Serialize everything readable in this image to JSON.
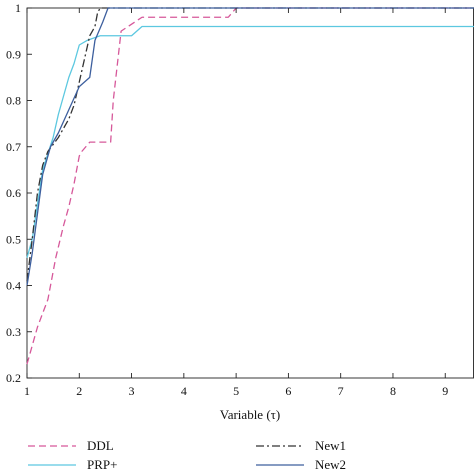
{
  "chart_data": {
    "type": "line",
    "title": "",
    "xlabel": "Variable (τ)",
    "ylabel": "",
    "xlim": [
      1,
      9.55
    ],
    "ylim": [
      0.2,
      1.0
    ],
    "x_ticks": [
      "1",
      "2",
      "3",
      "4",
      "5",
      "6",
      "7",
      "8",
      "9"
    ],
    "y_ticks": [
      "0.2",
      "0.3",
      "0.4",
      "0.5",
      "0.6",
      "0.7",
      "0.8",
      "0.9",
      "1"
    ],
    "grid": false,
    "legend_position": "bottom",
    "series": [
      {
        "name": "DDL",
        "color": "#d6589a",
        "dash": "dashed",
        "x": [
          1.0,
          1.1,
          1.2,
          1.3,
          1.4,
          1.55,
          1.7,
          1.8,
          1.9,
          2.0,
          2.05,
          2.2,
          2.4,
          2.6,
          2.65,
          2.8,
          3.2,
          3.5,
          4.0,
          4.5,
          4.85,
          5.0,
          9.55
        ],
        "y": [
          0.23,
          0.27,
          0.31,
          0.34,
          0.37,
          0.46,
          0.53,
          0.57,
          0.62,
          0.68,
          0.69,
          0.71,
          0.71,
          0.71,
          0.8,
          0.95,
          0.98,
          0.98,
          0.98,
          0.98,
          0.98,
          1.0,
          1.0
        ]
      },
      {
        "name": "PRP+",
        "color": "#5cc8e0",
        "dash": "solid",
        "x": [
          1.0,
          1.1,
          1.3,
          1.5,
          1.6,
          1.8,
          1.9,
          2.0,
          2.15,
          2.4,
          2.7,
          3.0,
          3.2,
          3.5,
          9.55
        ],
        "y": [
          0.46,
          0.5,
          0.65,
          0.72,
          0.77,
          0.85,
          0.88,
          0.92,
          0.93,
          0.94,
          0.94,
          0.94,
          0.96,
          0.96,
          0.96
        ]
      },
      {
        "name": "New1",
        "color": "#333333",
        "dash": "dashdot",
        "x": [
          1.0,
          1.1,
          1.2,
          1.3,
          1.4,
          1.6,
          1.8,
          1.9,
          2.0,
          2.1,
          2.2,
          2.3,
          2.35,
          2.4,
          9.55
        ],
        "y": [
          0.41,
          0.5,
          0.6,
          0.66,
          0.69,
          0.72,
          0.76,
          0.79,
          0.84,
          0.89,
          0.94,
          0.96,
          0.99,
          1.0,
          1.0
        ]
      },
      {
        "name": "New2",
        "color": "#3d5f9e",
        "dash": "solid",
        "x": [
          1.0,
          1.1,
          1.3,
          1.45,
          1.6,
          1.8,
          2.0,
          2.1,
          2.2,
          2.3,
          2.45,
          2.55,
          2.6,
          9.55
        ],
        "y": [
          0.4,
          0.47,
          0.64,
          0.7,
          0.73,
          0.78,
          0.83,
          0.84,
          0.85,
          0.93,
          0.97,
          1.0,
          1.0,
          1.0
        ]
      }
    ]
  }
}
